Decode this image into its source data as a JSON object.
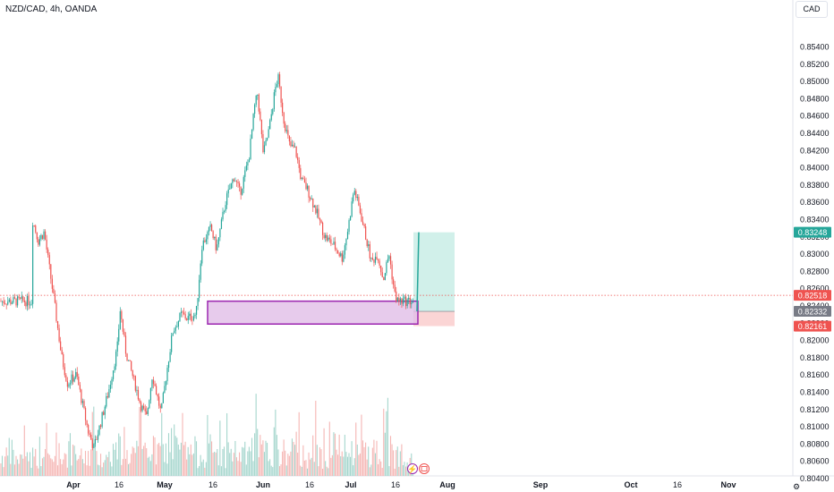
{
  "header": {
    "symbol_title": "NZD/CAD, 4h, OANDA",
    "currency_button": "CAD"
  },
  "colors": {
    "up": "#26a69a",
    "down": "#ef5350",
    "volume_up": "#a5d6cd",
    "volume_down": "#f5b6b4",
    "zone_border": "#9c27b0",
    "zone_fill": "#e1bee7",
    "profit_fill": "#d1f0ea",
    "loss_fill": "#fbd5d5",
    "grid": "#f0f3fa",
    "text": "#131722"
  },
  "chart_data": {
    "type": "candlestick",
    "symbol": "NZD/CAD",
    "timeframe": "4h",
    "source": "OANDA",
    "x_ticks": [
      "Apr",
      "16",
      "May",
      "16",
      "Jun",
      "16",
      "Jul",
      "16",
      "Aug",
      "Sep",
      "Oct",
      "16",
      "Nov"
    ],
    "y_ticks": [
      "0.85400",
      "0.85200",
      "0.85000",
      "0.84800",
      "0.84600",
      "0.84400",
      "0.84200",
      "0.84000",
      "0.83800",
      "0.83600",
      "0.83400",
      "0.83200",
      "0.83000",
      "0.82800",
      "0.82600",
      "0.82400",
      "0.82200",
      "0.82000",
      "0.81800",
      "0.81600",
      "0.81400",
      "0.81200",
      "0.81000",
      "0.80800",
      "0.80600",
      "0.80400"
    ],
    "ylim": [
      0.8032,
      0.8552
    ],
    "price_path": [
      [
        "2024-03-18",
        0.834
      ],
      [
        "2024-03-20",
        0.8315
      ],
      [
        "2024-03-22",
        0.8325
      ],
      [
        "2024-03-25",
        0.8255
      ],
      [
        "2024-03-28",
        0.818
      ],
      [
        "2024-03-30",
        0.815
      ],
      [
        "2024-04-02",
        0.816
      ],
      [
        "2024-04-06",
        0.8095
      ],
      [
        "2024-04-08",
        0.8075
      ],
      [
        "2024-04-10",
        0.81
      ],
      [
        "2024-04-13",
        0.814
      ],
      [
        "2024-04-16",
        0.819
      ],
      [
        "2024-04-17",
        0.8235
      ],
      [
        "2024-04-19",
        0.8185
      ],
      [
        "2024-04-22",
        0.815
      ],
      [
        "2024-04-24",
        0.8125
      ],
      [
        "2024-04-26",
        0.811
      ],
      [
        "2024-04-28",
        0.816
      ],
      [
        "2024-05-01",
        0.8115
      ],
      [
        "2024-05-03",
        0.8165
      ],
      [
        "2024-05-05",
        0.821
      ],
      [
        "2024-05-08",
        0.823
      ],
      [
        "2024-05-10",
        0.8225
      ],
      [
        "2024-05-13",
        0.823
      ],
      [
        "2024-05-15",
        0.831
      ],
      [
        "2024-05-18",
        0.833
      ],
      [
        "2024-05-20",
        0.8305
      ],
      [
        "2024-05-23",
        0.836
      ],
      [
        "2024-05-26",
        0.839
      ],
      [
        "2024-05-28",
        0.837
      ],
      [
        "2024-05-31",
        0.841
      ],
      [
        "2024-06-02",
        0.847
      ],
      [
        "2024-06-03",
        0.8485
      ],
      [
        "2024-06-05",
        0.8415
      ],
      [
        "2024-06-07",
        0.8445
      ],
      [
        "2024-06-09",
        0.849
      ],
      [
        "2024-06-10",
        0.8505
      ],
      [
        "2024-06-12",
        0.8455
      ],
      [
        "2024-06-14",
        0.8425
      ],
      [
        "2024-06-16",
        0.842
      ],
      [
        "2024-06-18",
        0.8385
      ],
      [
        "2024-06-20",
        0.8375
      ],
      [
        "2024-06-23",
        0.835
      ],
      [
        "2024-06-26",
        0.832
      ],
      [
        "2024-06-29",
        0.831
      ],
      [
        "2024-07-02",
        0.8295
      ],
      [
        "2024-07-04",
        0.833
      ],
      [
        "2024-07-06",
        0.8375
      ],
      [
        "2024-07-08",
        0.835
      ],
      [
        "2024-07-10",
        0.832
      ],
      [
        "2024-07-12",
        0.829
      ],
      [
        "2024-07-14",
        0.83
      ],
      [
        "2024-07-16",
        0.827
      ],
      [
        "2024-07-18",
        0.83
      ],
      [
        "2024-07-19",
        0.8275
      ],
      [
        "2024-07-20",
        0.8252
      ],
      [
        "2024-07-21",
        0.8245
      ]
    ],
    "volume_profile": [
      0.35,
      0.5,
      0.3,
      0.45,
      0.4,
      0.55,
      0.35,
      0.3,
      0.45,
      0.6,
      0.4,
      0.35,
      0.5,
      0.45,
      0.3,
      0.55,
      0.65,
      0.4,
      0.5,
      0.45,
      0.7,
      0.55,
      0.5,
      0.85,
      0.6,
      0.5,
      0.55,
      0.45,
      0.6,
      0.5,
      0.4,
      0.55,
      0.5,
      0.45,
      0.6,
      0.7,
      0.5,
      0.45,
      0.55,
      0.5,
      0.6,
      0.45,
      0.5,
      0.55,
      0.4,
      0.5,
      0.6,
      0.55,
      0.45,
      0.5,
      0.65,
      0.55,
      0.5,
      0.6,
      0.45,
      0.7,
      0.5
    ],
    "demand_zone": {
      "top": 0.8245,
      "bottom": 0.82185,
      "from": "2024-05-10",
      "to": "2024-07-21"
    },
    "position": {
      "entry": 0.82332,
      "target": 0.83248,
      "stop": 0.82161,
      "from": "2024-07-21",
      "to": "2024-08-01"
    },
    "labels": {
      "target": "0.83248",
      "last_line": "0.82518",
      "current": "0.82332",
      "stop": "0.82161"
    },
    "dotted_line_price": 0.82518
  },
  "footer": {
    "settings_icon": "gear-icon"
  }
}
